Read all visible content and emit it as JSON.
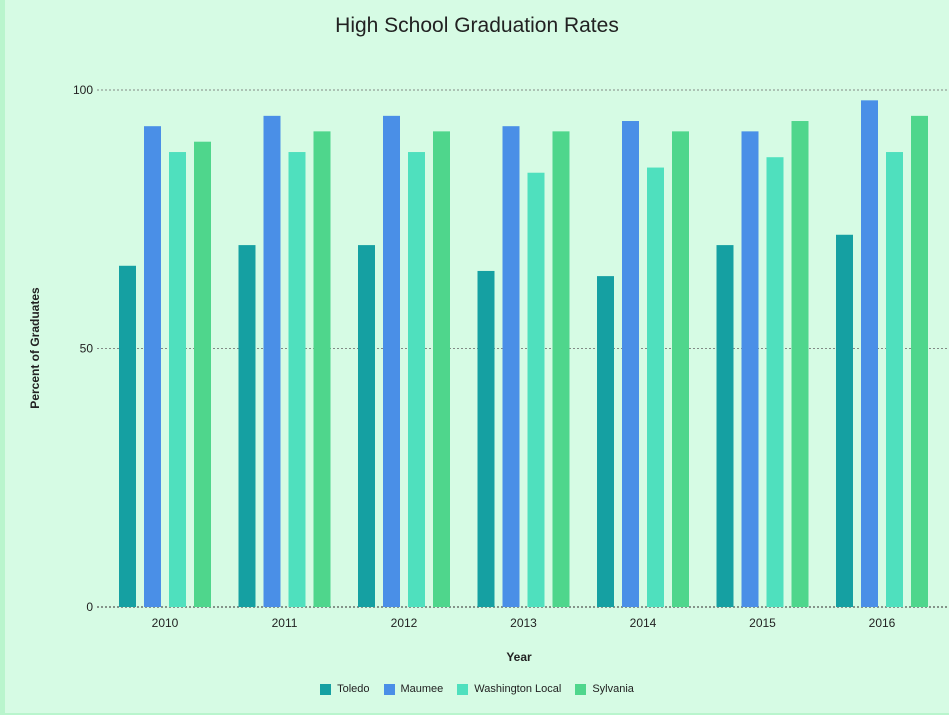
{
  "chart_data": {
    "type": "bar",
    "title": "High School Graduation Rates",
    "xlabel": "Year",
    "ylabel": "Percent of Graduates",
    "ylim": [
      0,
      100
    ],
    "yticks": [
      0,
      50,
      100
    ],
    "grid": true,
    "legend_position": "bottom",
    "categories": [
      "2010",
      "2011",
      "2012",
      "2013",
      "2014",
      "2015",
      "2016"
    ],
    "series": [
      {
        "name": "Toledo",
        "color": "#15a0a2",
        "values": [
          66,
          70,
          70,
          65,
          64,
          70,
          72
        ]
      },
      {
        "name": "Maumee",
        "color": "#4a8fe7",
        "values": [
          93,
          95,
          95,
          93,
          94,
          92,
          98
        ]
      },
      {
        "name": "Washington Local",
        "color": "#4fe0be",
        "values": [
          88,
          88,
          88,
          84,
          85,
          87,
          88
        ]
      },
      {
        "name": "Sylvania",
        "color": "#4fd68c",
        "values": [
          90,
          92,
          92,
          92,
          92,
          94,
          95
        ]
      }
    ]
  }
}
